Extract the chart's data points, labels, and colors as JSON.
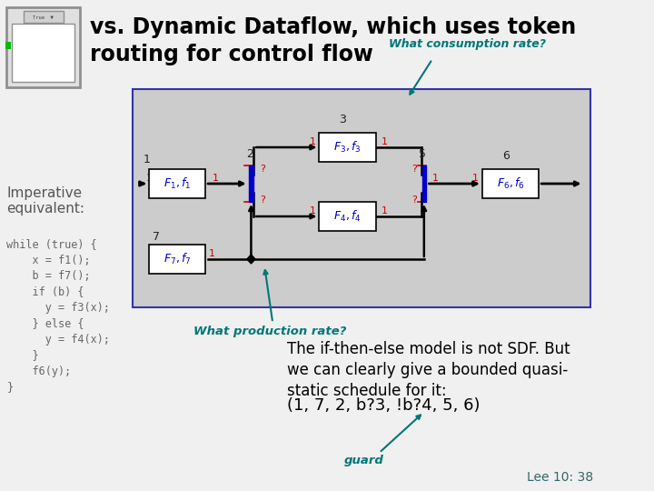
{
  "bg_color": "#f0f0f0",
  "title_line1": "vs. Dynamic Dataflow, which uses token",
  "title_line2": "routing for control flow",
  "title_color": "#000000",
  "title_fontsize": 17,
  "annotation_consumption": "What consumption rate?",
  "annotation_production": "What production rate?",
  "annotation_guard": "guard",
  "annotation_color": "#007777",
  "imperative_label": "Imperative\nequivalent:",
  "code_text": "while (true) {\n    x = f1();\n    b = f7();\n    if (b) {\n      y = f3(x);\n    } else {\n      y = f4(x);\n    }\n    f6(y);\n}",
  "body_text": "The if-then-else model is not SDF. But\nwe can clearly give a bounded quasi-\nstatic schedule for it:",
  "body_schedule": "(1, 7, 2, b?3, !b?4, 5, 6)",
  "slide_ref": "Lee 10: 38",
  "diagram_bg": "#cccccc",
  "diagram_border": "#3333aa",
  "box_color": "#ffffff",
  "box_border": "#000000",
  "red_color": "#cc0000",
  "blue_color": "#0000cc",
  "teal_color": "#007777"
}
